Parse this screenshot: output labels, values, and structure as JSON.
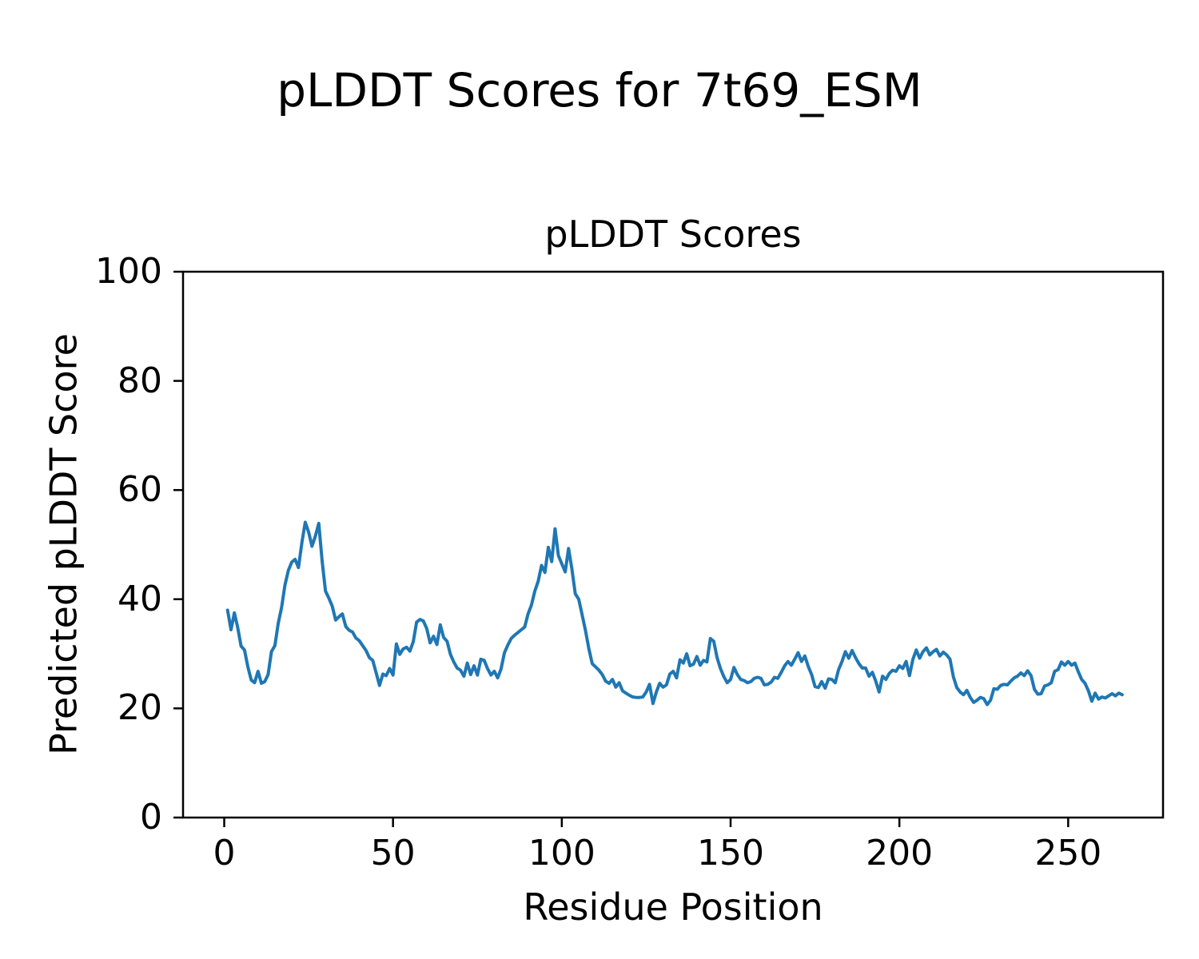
{
  "figure": {
    "suptitle": "pLDDT Scores for 7t69_ESM",
    "background": "#ffffff"
  },
  "chart_data": {
    "type": "line",
    "title": "pLDDT Scores",
    "xlabel": "Residue Position",
    "ylabel": "Predicted pLDDT Score",
    "xlim": [
      -12.2,
      278.1
    ],
    "ylim": [
      0,
      100
    ],
    "xticks": [
      0,
      50,
      100,
      150,
      200,
      250
    ],
    "yticks": [
      0,
      20,
      40,
      60,
      80,
      100
    ],
    "grid": false,
    "legend_position": "none",
    "line_color": "#1f77b4",
    "line_width": 4,
    "axis_color": "#000000",
    "x": {
      "start": 1,
      "step": 1
    },
    "series": [
      {
        "name": "pLDDT Score",
        "values": [
          38.0,
          34.4,
          37.5,
          34.8,
          31.4,
          30.7,
          27.6,
          25.2,
          24.7,
          26.8,
          24.6,
          24.9,
          26.2,
          30.4,
          31.5,
          35.6,
          38.5,
          42.6,
          45.3,
          46.8,
          47.3,
          45.8,
          50.4,
          54.1,
          52.3,
          49.7,
          51.6,
          53.9,
          47.0,
          41.5,
          40.2,
          38.7,
          36.2,
          36.8,
          37.3,
          35.0,
          34.3,
          34.0,
          32.9,
          32.4,
          31.5,
          30.6,
          29.3,
          28.8,
          26.5,
          24.2,
          26.3,
          26.0,
          27.3,
          26.1,
          31.8,
          29.9,
          30.9,
          31.2,
          30.5,
          32.2,
          35.8,
          36.3,
          36.0,
          34.6,
          32.0,
          33.2,
          31.7,
          35.3,
          33.0,
          32.3,
          29.9,
          28.5,
          27.4,
          27.0,
          25.9,
          28.3,
          26.2,
          27.8,
          26.1,
          29.0,
          28.8,
          27.3,
          26.1,
          26.8,
          25.6,
          27.2,
          30.2,
          31.6,
          32.8,
          33.4,
          33.9,
          34.4,
          34.9,
          37.3,
          38.9,
          41.5,
          43.3,
          46.2,
          44.9,
          49.5,
          46.9,
          52.9,
          48.0,
          46.5,
          45.0,
          49.3,
          45.5,
          41.0,
          40.0,
          37.2,
          34.3,
          31.0,
          28.2,
          27.6,
          27.0,
          26.2,
          25.0,
          24.6,
          25.3,
          23.9,
          24.7,
          23.2,
          22.8,
          22.4,
          22.1,
          22.0,
          22.0,
          22.1,
          23.0,
          24.4,
          20.9,
          23.0,
          24.6,
          23.9,
          24.3,
          26.3,
          26.8,
          25.6,
          28.9,
          28.3,
          30.0,
          27.8,
          28.1,
          29.5,
          27.9,
          28.8,
          28.5,
          32.8,
          32.3,
          29.3,
          27.3,
          25.8,
          24.7,
          25.3,
          27.5,
          26.2,
          25.3,
          25.1,
          24.7,
          24.9,
          25.5,
          25.7,
          25.5,
          24.3,
          24.4,
          24.8,
          25.7,
          25.5,
          26.6,
          27.8,
          28.6,
          27.9,
          29.0,
          30.2,
          28.6,
          29.6,
          27.7,
          26.2,
          24.0,
          23.8,
          24.9,
          23.7,
          25.4,
          25.3,
          24.7,
          27.1,
          28.6,
          30.4,
          29.2,
          30.6,
          29.3,
          28.2,
          27.4,
          27.4,
          25.9,
          26.6,
          25.0,
          23.0,
          25.9,
          25.3,
          26.4,
          27.0,
          26.8,
          27.8,
          27.3,
          28.6,
          26.0,
          29.0,
          30.7,
          29.2,
          30.4,
          31.1,
          29.8,
          30.4,
          30.8,
          29.6,
          30.3,
          29.8,
          29.0,
          25.8,
          23.8,
          23.0,
          22.5,
          23.3,
          22.0,
          21.1,
          21.5,
          22.0,
          21.8,
          20.7,
          21.5,
          23.6,
          23.5,
          24.2,
          24.4,
          24.3,
          25.0,
          25.6,
          25.9,
          26.5,
          26.0,
          26.9,
          26.0,
          23.5,
          22.6,
          22.7,
          24.1,
          24.3,
          24.7,
          26.8,
          27.1,
          28.5,
          27.9,
          28.6,
          27.9,
          28.3,
          26.7,
          25.3,
          24.6,
          23.2,
          21.3,
          22.8,
          21.7,
          22.1,
          21.9,
          22.3,
          22.7,
          22.3,
          22.8,
          22.5
        ]
      }
    ]
  }
}
